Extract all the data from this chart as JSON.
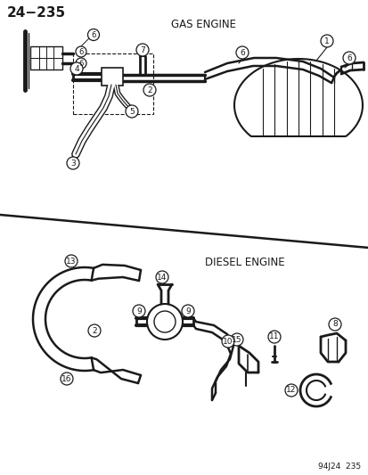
{
  "title": "24−235",
  "footer": "94J24  235",
  "gas_engine_label": "GAS ENGINE",
  "diesel_engine_label": "DIESEL ENGINE",
  "bg_color": "#ffffff",
  "line_color": "#1a1a1a",
  "text_color": "#1a1a1a",
  "fig_width": 4.14,
  "fig_height": 5.33,
  "dpi": 100
}
